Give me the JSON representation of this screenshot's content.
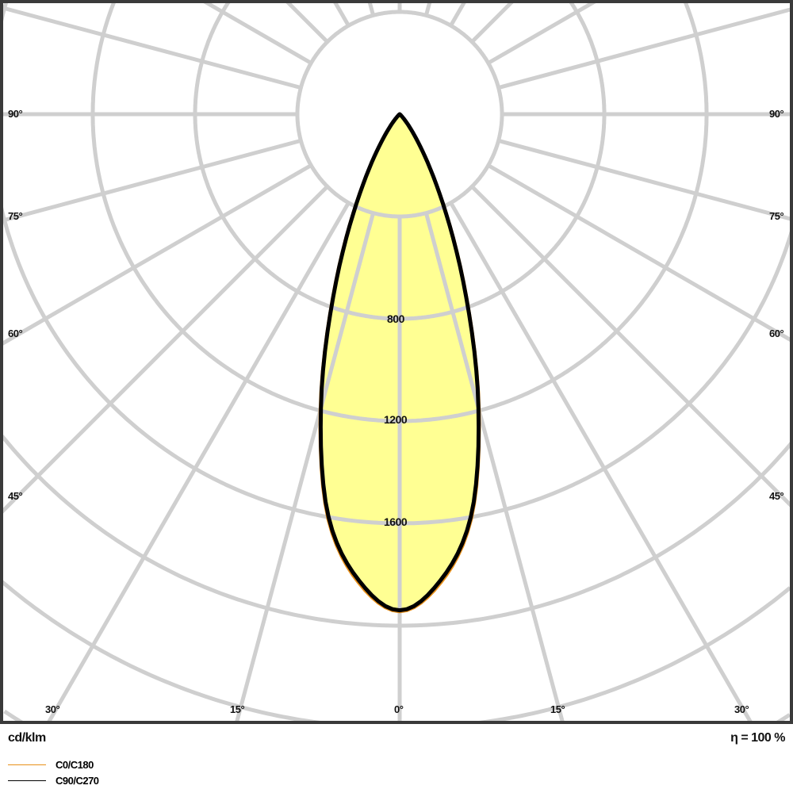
{
  "chart_data": {
    "type": "polar",
    "unit_label": "cd/klm",
    "efficiency_label": "η = 100 %",
    "radial_ticks": [
      400,
      800,
      1200,
      1600,
      2000,
      2400,
      2800,
      3200
    ],
    "radial_tick_labels": [
      "800",
      "1200",
      "1600"
    ],
    "angle_step_deg": 15,
    "angle_labels": [
      "90°",
      "75°",
      "60°",
      "45°",
      "30°",
      "15°",
      "0°"
    ],
    "grid": true,
    "fill_color": "#ffff80",
    "angles_deg": [
      0,
      5,
      10,
      15,
      20,
      25,
      30,
      35,
      40,
      45,
      50,
      60,
      70,
      80,
      90
    ],
    "series": [
      {
        "name": "C0/C180",
        "color": "#e8901a",
        "values": [
          1945,
          1840,
          1610,
          1200,
          770,
          440,
          225,
          105,
          45,
          15,
          5,
          0,
          0,
          0,
          0
        ]
      },
      {
        "name": "C90/C270",
        "color": "#000000",
        "values": [
          1940,
          1830,
          1600,
          1190,
          760,
          430,
          220,
          100,
          40,
          12,
          4,
          0,
          0,
          0,
          0
        ]
      }
    ]
  }
}
